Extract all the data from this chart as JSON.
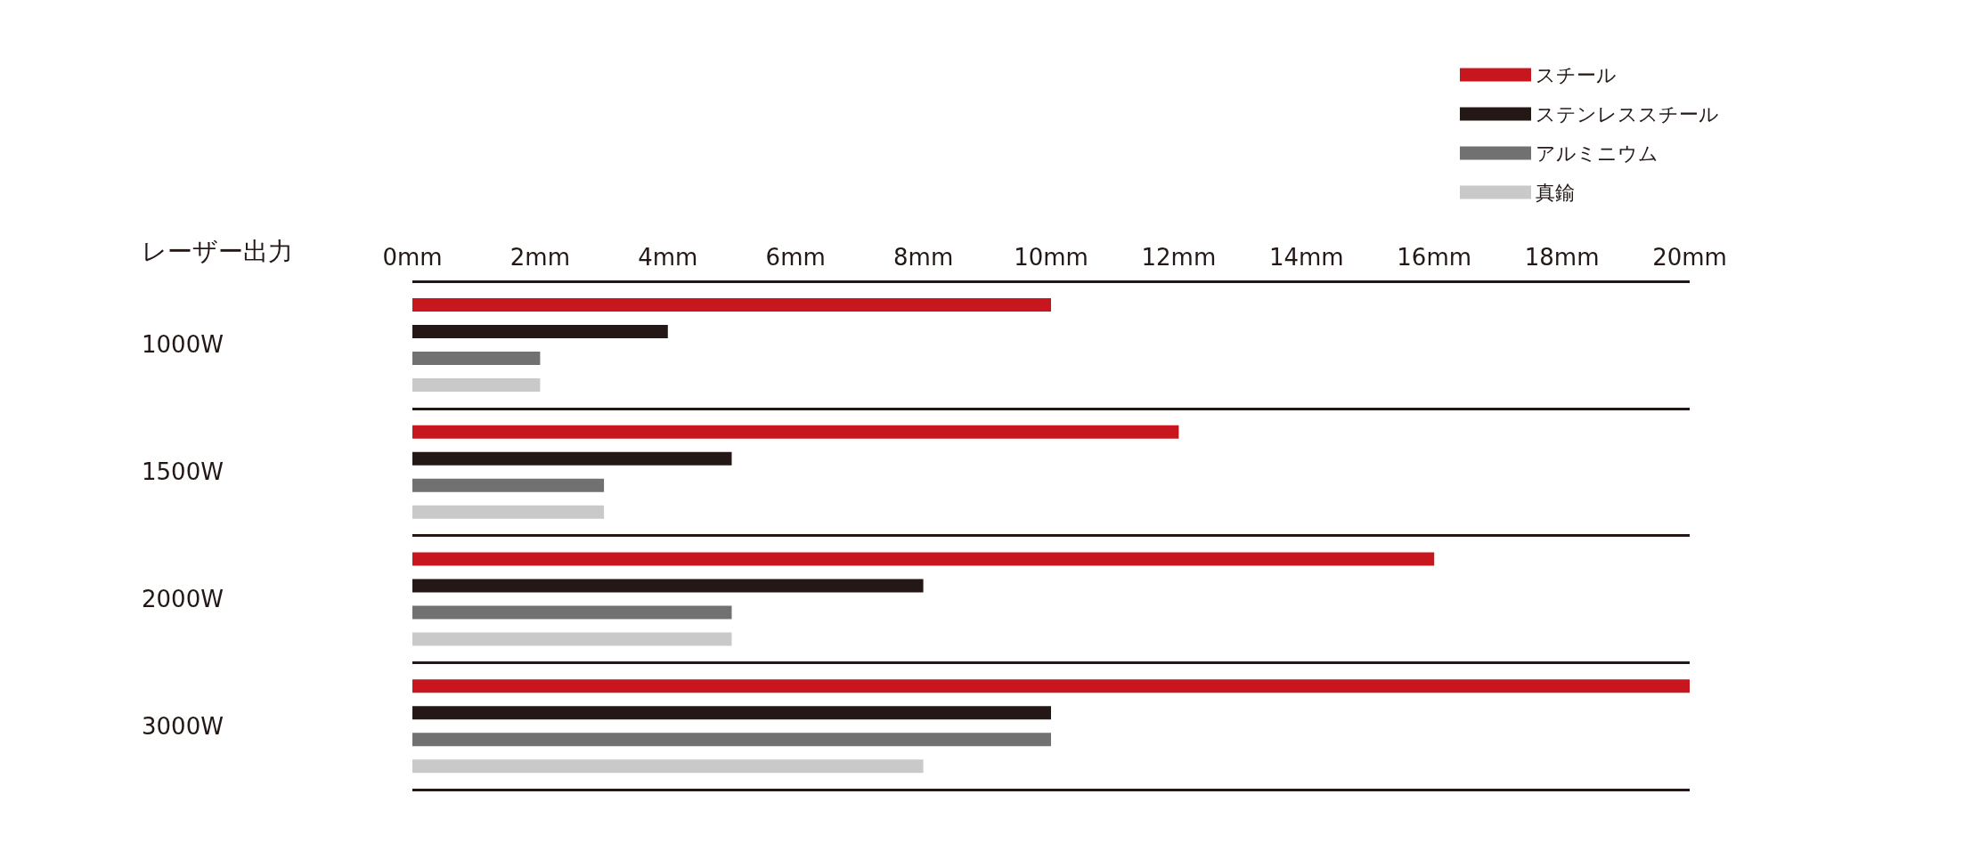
{
  "chart_data": {
    "type": "bar",
    "orientation": "horizontal",
    "ylabel": "レーザー出力",
    "categories": [
      "1000W",
      "1500W",
      "2000W",
      "3000W"
    ],
    "series": [
      {
        "name": "スチール",
        "color": "#c8161e",
        "values": [
          10,
          12,
          16,
          20
        ]
      },
      {
        "name": "ステンレススチール",
        "color": "#231815",
        "values": [
          4,
          5,
          8,
          10
        ]
      },
      {
        "name": "アルミニウム",
        "color": "#727171",
        "values": [
          2,
          3,
          5,
          10
        ]
      },
      {
        "name": "真鍮",
        "color": "#c9c9c9",
        "values": [
          2,
          3,
          5,
          8
        ]
      }
    ],
    "xlim": [
      0,
      20
    ],
    "xticks": [
      {
        "value": 0,
        "label": "0mm"
      },
      {
        "value": 2,
        "label": "2mm"
      },
      {
        "value": 4,
        "label": "4mm"
      },
      {
        "value": 6,
        "label": "6mm"
      },
      {
        "value": 8,
        "label": "8mm"
      },
      {
        "value": 10,
        "label": "10mm"
      },
      {
        "value": 12,
        "label": "12mm"
      },
      {
        "value": 14,
        "label": "14mm"
      },
      {
        "value": 16,
        "label": "16mm"
      },
      {
        "value": 18,
        "label": "18mm"
      },
      {
        "value": 20,
        "label": "20mm"
      }
    ],
    "grid": "y",
    "legend": "top right"
  }
}
